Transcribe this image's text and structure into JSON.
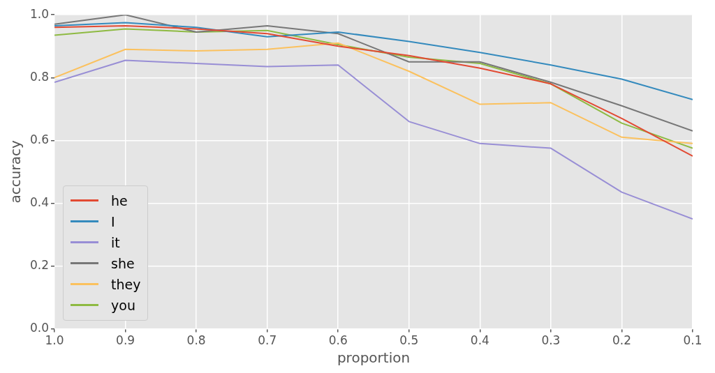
{
  "chart_data": {
    "type": "line",
    "xlabel": "proportion",
    "ylabel": "accuracy",
    "x": [
      1.0,
      0.9,
      0.8,
      0.7,
      0.6,
      0.5,
      0.4,
      0.3,
      0.2,
      0.1
    ],
    "xlim": [
      1.0,
      0.1
    ],
    "xticks": [
      {
        "value": 1.0,
        "label": "1.0"
      },
      {
        "value": 0.9,
        "label": "0.9"
      },
      {
        "value": 0.8,
        "label": "0.8"
      },
      {
        "value": 0.7,
        "label": "0.7"
      },
      {
        "value": 0.6,
        "label": "0.6"
      },
      {
        "value": 0.5,
        "label": "0.5"
      },
      {
        "value": 0.4,
        "label": "0.4"
      },
      {
        "value": 0.3,
        "label": "0.3"
      },
      {
        "value": 0.2,
        "label": "0.2"
      },
      {
        "value": 0.1,
        "label": "0.1"
      }
    ],
    "ylim": [
      0,
      1.0
    ],
    "yticks": [
      {
        "value": 0,
        "label": "0.0"
      },
      {
        "value": 0.2,
        "label": "0.2"
      },
      {
        "value": 0.4,
        "label": "0.4"
      },
      {
        "value": 0.6,
        "label": "0.6"
      },
      {
        "value": 0.8,
        "label": "0.8"
      },
      {
        "value": 1.0,
        "label": "1.0"
      }
    ],
    "grid": true,
    "legend": "bottom left",
    "marker": "none",
    "line_style": "solid",
    "series": [
      {
        "name": "he",
        "color": "#e24a33",
        "values": [
          0.96,
          0.965,
          0.955,
          0.94,
          0.9,
          0.87,
          0.83,
          0.78,
          0.67,
          0.55
        ]
      },
      {
        "name": "I",
        "color": "#348abd",
        "values": [
          0.965,
          0.975,
          0.96,
          0.93,
          0.945,
          0.915,
          0.88,
          0.84,
          0.795,
          0.73
        ]
      },
      {
        "name": "it",
        "color": "#988ed5",
        "values": [
          0.785,
          0.855,
          0.845,
          0.835,
          0.84,
          0.66,
          0.59,
          0.575,
          0.435,
          0.35
        ]
      },
      {
        "name": "she",
        "color": "#777777",
        "values": [
          0.97,
          1.0,
          0.945,
          0.965,
          0.94,
          0.85,
          0.85,
          0.785,
          0.71,
          0.63
        ]
      },
      {
        "name": "they",
        "color": "#fbc15e",
        "values": [
          0.8,
          0.89,
          0.885,
          0.89,
          0.91,
          0.82,
          0.715,
          0.72,
          0.61,
          0.59
        ]
      },
      {
        "name": "you",
        "color": "#8eba42",
        "values": [
          0.935,
          0.955,
          0.945,
          0.95,
          0.905,
          0.865,
          0.845,
          0.78,
          0.655,
          0.575
        ]
      }
    ]
  }
}
